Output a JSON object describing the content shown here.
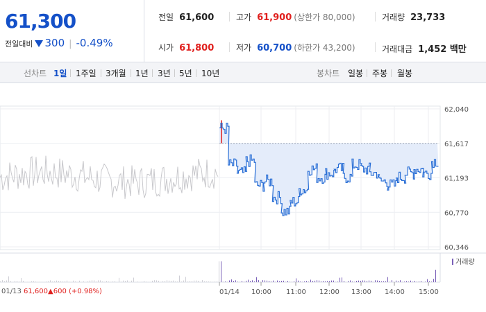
{
  "quote": {
    "current_price": "61,300",
    "change_label": "전일대비",
    "change_amount": "300",
    "change_percent": "-0.49%",
    "prev_close_label": "전일",
    "prev_close": "61,600",
    "high_label": "고가",
    "high": "61,900",
    "upper_limit": "(상한가 80,000)",
    "volume_label": "거래량",
    "volume": "23,733",
    "open_label": "시가",
    "open": "61,800",
    "low_label": "저가",
    "low": "60,700",
    "lower_limit": "(하한가 43,200)",
    "amount_label": "거래대금",
    "amount": "1,452 백만"
  },
  "tabs": {
    "line_label": "선차트",
    "periods": [
      "1일",
      "1주일",
      "3개월",
      "1년",
      "3년",
      "5년",
      "10년"
    ],
    "active_period": "1일",
    "candle_label": "봉차트",
    "candles": [
      "일봉",
      "주봉",
      "월봉"
    ]
  },
  "colors": {
    "up": "#e0201e",
    "down": "#1450c8",
    "prev_day_line": "#c8c8cc",
    "fill": "#e4ecfa"
  },
  "chart_data": {
    "type": "line",
    "y_ticks": [
      "62,040",
      "61,617",
      "61,193",
      "60,770",
      "60,346"
    ],
    "ylim": [
      60346,
      62040
    ],
    "x_ticks": [
      "01/14",
      "10:00",
      "11:00",
      "12:00",
      "13:00",
      "14:00",
      "15:00"
    ],
    "volume_legend": "거래량",
    "prev_day": {
      "date": "01/13",
      "close": "61,600",
      "change": "600",
      "change_percent": "(+0.98%)"
    },
    "series": [
      {
        "name": "",
        "time": [
          "09:00",
          "09:15",
          "09:30",
          "09:45",
          "10:00",
          "10:15",
          "10:30",
          "10:45",
          "11:00",
          "11:15",
          "11:30",
          "11:45",
          "12:00",
          "12:15",
          "12:30",
          "12:45",
          "13:00",
          "13:15",
          "13:30",
          "13:45",
          "14:00",
          "14:15",
          "14:30",
          "14:45",
          "15:00",
          "15:10"
        ],
        "values": [
          61800,
          61350,
          61250,
          61400,
          61100,
          61150,
          60950,
          60780,
          60900,
          61050,
          61300,
          61200,
          61250,
          61300,
          61200,
          61350,
          61300,
          61250,
          61150,
          61100,
          61200,
          61250,
          61300,
          61250,
          61400,
          61300
        ]
      }
    ]
  }
}
